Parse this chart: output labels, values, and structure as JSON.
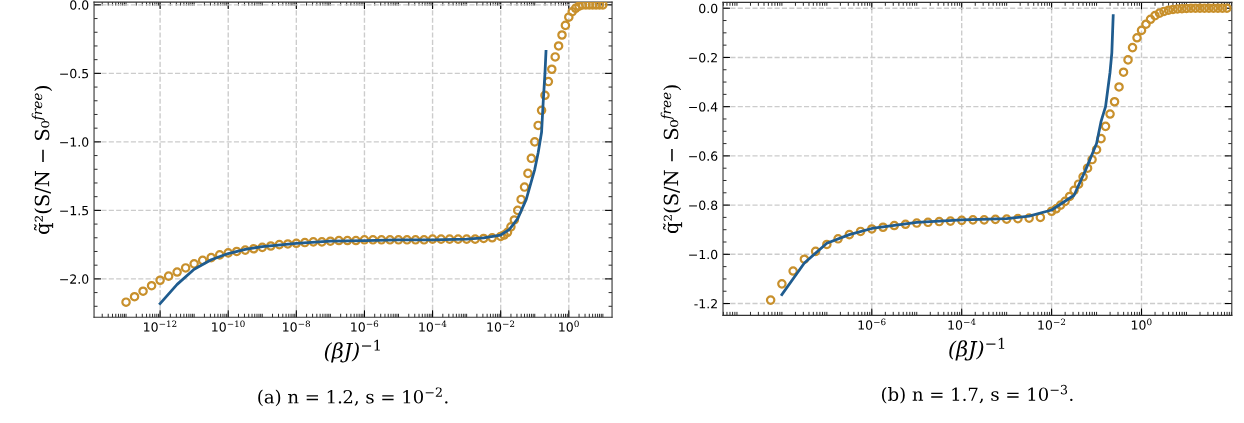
{
  "chart_data": [
    {
      "type": "scatter",
      "title": "(a) n = 1.2, s = 10$^{−2}$.",
      "xlabel": "(βJ)$^{−1}$",
      "ylabel": "q̃²(S/N − S₀$^{free}$)",
      "log": "x",
      "grid": true,
      "xlim": [
        1.15e-14,
        18.6
      ],
      "ylim": [
        -2.28,
        0.02
      ],
      "xticks": [
        {
          "value": 1e-12,
          "label": "10$^{−12}$"
        },
        {
          "value": 1e-10,
          "label": "10$^{−10}$"
        },
        {
          "value": 1e-08,
          "label": "10$^{−8}$"
        },
        {
          "value": 1e-06,
          "label": "10$^{−6}$"
        },
        {
          "value": 0.0001,
          "label": "10$^{−4}$"
        },
        {
          "value": 0.01,
          "label": "10$^{−2}$"
        },
        {
          "value": 1,
          "label": "10$^{0}$"
        }
      ],
      "yticks": [
        {
          "value": 0,
          "label": "0.0"
        },
        {
          "value": -0.5,
          "label": "−0.5"
        },
        {
          "value": -1,
          "label": "−1.0"
        },
        {
          "value": -1.5,
          "label": "−1.5"
        },
        {
          "value": -2,
          "label": "−2.0"
        }
      ],
      "series": [
        {
          "marker": "circle",
          "color": "#c8902c",
          "x": [
            1e-13,
            1.778e-13,
            3.162e-13,
            5.623e-13,
            1e-12,
            1.778e-12,
            3.162e-12,
            5.623e-12,
            1e-11,
            1.778e-11,
            3.162e-11,
            5.623e-11,
            1e-10,
            1.778e-10,
            3.162e-10,
            5.623e-10,
            1e-09,
            1.778e-09,
            3.162e-09,
            5.623e-09,
            1e-08,
            1.778e-08,
            3.162e-08,
            5.623e-08,
            1e-07,
            1.778e-07,
            3.162e-07,
            5.623e-07,
            1e-06,
            1.778e-06,
            3.162e-06,
            5.623e-06,
            1e-05,
            1.778e-05,
            3.162e-05,
            5.623e-05,
            0.0001,
            0.0001778,
            0.0003162,
            0.0005623,
            0.001,
            0.001778,
            0.003162,
            0.005623,
            0.01,
            0.01259,
            0.01585,
            0.01995,
            0.02512,
            0.03162,
            0.03981,
            0.05012,
            0.0631,
            0.07943,
            0.1,
            0.1259,
            0.1585,
            0.1995,
            0.2512,
            0.3162,
            0.3981,
            0.5012,
            0.631,
            0.7943,
            1,
            1.259,
            1.585,
            1.995,
            2.512,
            3.162,
            3.981,
            5.012,
            6.31,
            7.943,
            10
          ],
          "values": [
            -2.17,
            -2.13,
            -2.09,
            -2.05,
            -2.01,
            -1.98,
            -1.95,
            -1.92,
            -1.89,
            -1.865,
            -1.845,
            -1.825,
            -1.81,
            -1.8,
            -1.79,
            -1.78,
            -1.77,
            -1.76,
            -1.75,
            -1.745,
            -1.74,
            -1.735,
            -1.73,
            -1.73,
            -1.725,
            -1.72,
            -1.72,
            -1.72,
            -1.715,
            -1.715,
            -1.715,
            -1.715,
            -1.715,
            -1.715,
            -1.715,
            -1.715,
            -1.71,
            -1.71,
            -1.71,
            -1.71,
            -1.71,
            -1.71,
            -1.705,
            -1.7,
            -1.69,
            -1.68,
            -1.66,
            -1.62,
            -1.57,
            -1.5,
            -1.42,
            -1.33,
            -1.23,
            -1.12,
            -1.0,
            -0.88,
            -0.77,
            -0.66,
            -0.56,
            -0.47,
            -0.38,
            -0.3,
            -0.22,
            -0.15,
            -0.09,
            -0.05,
            -0.025,
            -0.01,
            0,
            0,
            0,
            0,
            0,
            0,
            0
          ]
        },
        {
          "type": "line",
          "marker": "none",
          "line_style": "solid",
          "color": "#1f5c8f",
          "x": [
            1e-12,
            3.162e-12,
            1e-11,
            3.162e-11,
            1e-10,
            3.162e-10,
            1e-09,
            1e-08,
            1e-07,
            1e-06,
            1e-05,
            0.0001,
            0.001,
            0.003162,
            0.01,
            0.01778,
            0.03162,
            0.05623,
            0.1,
            0.1259,
            0.1585,
            0.1778,
            0.1995,
            0.2138
          ],
          "values": [
            -2.18,
            -2.04,
            -1.93,
            -1.86,
            -1.815,
            -1.785,
            -1.765,
            -1.74,
            -1.725,
            -1.72,
            -1.715,
            -1.715,
            -1.71,
            -1.7,
            -1.68,
            -1.64,
            -1.56,
            -1.42,
            -1.2,
            -1.08,
            -0.93,
            -0.7,
            -0.5,
            -0.34
          ]
        }
      ]
    },
    {
      "type": "scatter",
      "title": "(b) n = 1.7, s = 10$^{−3}$.",
      "xlabel": "(βJ)$^{−1}$",
      "ylabel": "q̃²(S/N − S₀$^{free}$)",
      "log": "x",
      "grid": true,
      "xlim": [
        4.9e-10,
        102
      ],
      "ylim": [
        -1.248,
        0.024
      ],
      "xticks": [
        {
          "value": 1e-06,
          "label": "10$^{−6}$"
        },
        {
          "value": 0.0001,
          "label": "10$^{−4}$"
        },
        {
          "value": 0.01,
          "label": "10$^{−2}$"
        },
        {
          "value": 1,
          "label": "10$^{0}$"
        }
      ],
      "yticks": [
        {
          "value": 0,
          "label": "0.0"
        },
        {
          "value": -0.2,
          "label": "−0.2"
        },
        {
          "value": -0.4,
          "label": "−0.4"
        },
        {
          "value": -0.6,
          "label": "−0.6"
        },
        {
          "value": -0.8,
          "label": "−0.8"
        },
        {
          "value": -1,
          "label": "−1.0"
        },
        {
          "value": -1.2,
          "label": "-1.2"
        }
      ],
      "series": [
        {
          "marker": "circle",
          "color": "#c8902c",
          "x": [
            5.623e-09,
            1e-08,
            1.778e-08,
            3.162e-08,
            5.623e-08,
            1e-07,
            1.778e-07,
            3.162e-07,
            5.623e-07,
            1e-06,
            1.778e-06,
            3.162e-06,
            5.623e-06,
            1e-05,
            1.778e-05,
            3.162e-05,
            5.623e-05,
            0.0001,
            0.0001778,
            0.0003162,
            0.0005623,
            0.001,
            0.001778,
            0.003162,
            0.005623,
            0.01,
            0.01259,
            0.01585,
            0.01995,
            0.02512,
            0.03162,
            0.03981,
            0.05012,
            0.0631,
            0.07943,
            0.1,
            0.1259,
            0.1585,
            0.1995,
            0.2512,
            0.3162,
            0.3981,
            0.5012,
            0.631,
            0.7943,
            1,
            1.259,
            1.585,
            1.995,
            2.512,
            3.162,
            3.981,
            5.012,
            6.31,
            7.943,
            10,
            12.59,
            15.85,
            19.95,
            25.12,
            31.62,
            39.81,
            50.12,
            63.1,
            79.43
          ],
          "values": [
            -1.186,
            -1.12,
            -1.068,
            -1.02,
            -0.988,
            -0.96,
            -0.937,
            -0.92,
            -0.907,
            -0.897,
            -0.89,
            -0.883,
            -0.878,
            -0.873,
            -0.87,
            -0.867,
            -0.865,
            -0.862,
            -0.86,
            -0.86,
            -0.858,
            -0.857,
            -0.855,
            -0.853,
            -0.85,
            -0.825,
            -0.815,
            -0.8,
            -0.785,
            -0.765,
            -0.74,
            -0.715,
            -0.685,
            -0.65,
            -0.615,
            -0.575,
            -0.53,
            -0.48,
            -0.43,
            -0.38,
            -0.32,
            -0.26,
            -0.21,
            -0.16,
            -0.12,
            -0.09,
            -0.065,
            -0.045,
            -0.03,
            -0.02,
            -0.013,
            -0.008,
            -0.005,
            -0.003,
            -0.002,
            -0.001,
            0,
            0,
            0,
            0,
            0,
            0,
            0,
            0,
            0
          ]
        },
        {
          "type": "line",
          "marker": "none",
          "line_style": "solid",
          "color": "#1f5c8f",
          "x": [
            1e-08,
            3.162e-08,
            1e-07,
            3.162e-07,
            1e-06,
            1e-05,
            0.0001,
            0.001,
            0.003162,
            0.01,
            0.03162,
            0.05623,
            0.1,
            0.1259,
            0.1585,
            0.1995,
            0.2188,
            0.2344
          ],
          "values": [
            -1.164,
            -1.035,
            -0.955,
            -0.92,
            -0.895,
            -0.87,
            -0.86,
            -0.855,
            -0.845,
            -0.82,
            -0.76,
            -0.66,
            -0.55,
            -0.46,
            -0.4,
            -0.26,
            -0.18,
            -0.03
          ]
        }
      ]
    }
  ]
}
